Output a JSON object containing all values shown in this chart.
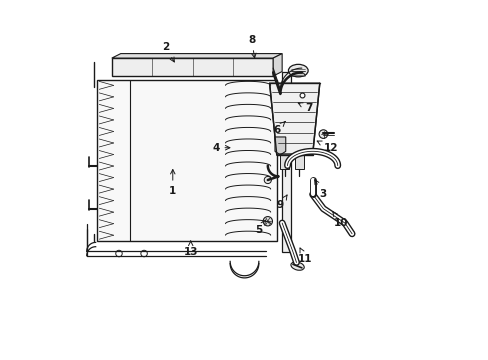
{
  "bg_color": "#ffffff",
  "line_color": "#1a1a1a",
  "fig_width": 4.89,
  "fig_height": 3.6,
  "dpi": 100,
  "label_positions": {
    "1": [
      0.3,
      0.47,
      0.3,
      0.54
    ],
    "2": [
      0.28,
      0.87,
      0.31,
      0.82
    ],
    "3": [
      0.72,
      0.46,
      0.69,
      0.51
    ],
    "4": [
      0.42,
      0.59,
      0.47,
      0.59
    ],
    "5": [
      0.54,
      0.36,
      0.56,
      0.39
    ],
    "6": [
      0.59,
      0.64,
      0.62,
      0.67
    ],
    "7": [
      0.68,
      0.7,
      0.64,
      0.72
    ],
    "8": [
      0.52,
      0.89,
      0.53,
      0.83
    ],
    "9": [
      0.6,
      0.43,
      0.62,
      0.46
    ],
    "10": [
      0.77,
      0.38,
      0.74,
      0.42
    ],
    "11": [
      0.67,
      0.28,
      0.65,
      0.32
    ],
    "12": [
      0.74,
      0.59,
      0.7,
      0.61
    ],
    "13": [
      0.35,
      0.3,
      0.35,
      0.34
    ]
  }
}
